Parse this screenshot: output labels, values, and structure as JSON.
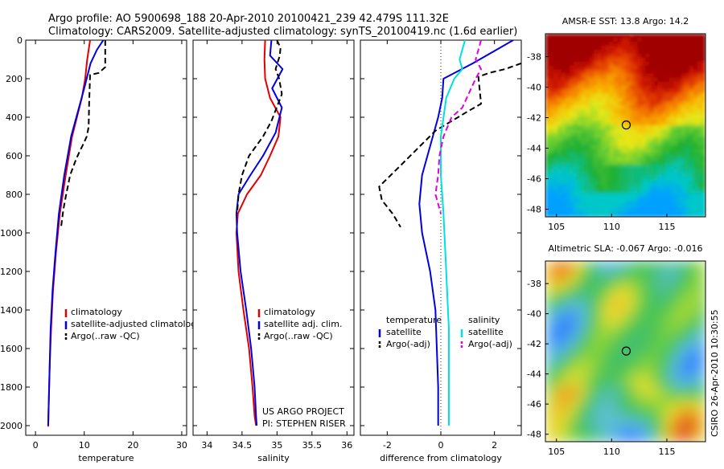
{
  "header": {
    "line1": "Argo profile: AO 5900698_188 20-Apr-2010 20100421_239 42.479S 111.32E",
    "line2": "Climatology: CARS2009. Satellite-adjusted climatology: synTS_20100419.nc (1.6d earlier)"
  },
  "credit": {
    "project": "US ARGO PROJECT",
    "pi": "PI: STEPHEN RISER",
    "stamp": "CSIRO 26-Apr-2010 10:30:55"
  },
  "colors": {
    "climatology": "#e00000",
    "satellite": "#0000e0",
    "argo": "#000000",
    "salinity_satellite": "#00e0e0",
    "salinity_argo": "#e000e0"
  },
  "chart_data": [
    {
      "type": "line",
      "id": "temperature",
      "xlabel": "temperature",
      "ylabel": "",
      "xlim": [
        -2,
        31
      ],
      "ylim": [
        2050,
        0
      ],
      "xticks": [
        0,
        10,
        20,
        30
      ],
      "yticks": [
        0,
        200,
        400,
        600,
        800,
        1000,
        1200,
        1400,
        1600,
        1800,
        2000
      ],
      "legend": [
        "climatology",
        "satellite-adjusted climatology",
        "Argo(..raw -QC)"
      ],
      "series": [
        {
          "name": "climatology",
          "color": "#e00000",
          "dash": "",
          "x": [
            11.2,
            10.6,
            10.2,
            9.5,
            7.5,
            6.2,
            5.0,
            4.2,
            3.6,
            3.2,
            2.9,
            2.7,
            2.6,
            2.6
          ],
          "y": [
            0,
            100,
            200,
            300,
            500,
            700,
            900,
            1100,
            1300,
            1500,
            1700,
            1900,
            2000,
            2005
          ]
        },
        {
          "name": "satellite-adjusted climatology",
          "color": "#0000e0",
          "dash": "",
          "x": [
            13.9,
            12.6,
            11.3,
            10.0,
            7.3,
            5.9,
            4.8,
            4.1,
            3.5,
            3.1,
            2.9,
            2.7,
            2.6
          ],
          "y": [
            0,
            50,
            120,
            250,
            500,
            700,
            900,
            1100,
            1300,
            1500,
            1700,
            1900,
            2000
          ]
        },
        {
          "name": "Argo(..raw -QC)",
          "color": "#000000",
          "dash": "7,4",
          "x": [
            14.3,
            14.3,
            13.0,
            11.2,
            11.0,
            10.9,
            10.5,
            9.8,
            9.0,
            8.3,
            7.1,
            6.3,
            5.7,
            5.2
          ],
          "y": [
            0,
            140,
            170,
            180,
            330,
            450,
            500,
            540,
            580,
            620,
            700,
            800,
            880,
            980
          ]
        }
      ]
    },
    {
      "type": "line",
      "id": "salinity",
      "xlabel": "salinity",
      "ylabel": "",
      "xlim": [
        33.8,
        36.1
      ],
      "ylim": [
        2050,
        0
      ],
      "xticks": [
        34,
        34.5,
        35,
        35.5,
        36
      ],
      "yticks": [
        0,
        200,
        400,
        600,
        800,
        1000,
        1200,
        1400,
        1600,
        1800,
        2000
      ],
      "legend": [
        "climatology",
        "satellite adj. clim.",
        "Argo(..raw -QC)"
      ],
      "series": [
        {
          "name": "climatology",
          "color": "#e00000",
          "dash": "",
          "x": [
            34.83,
            34.82,
            34.83,
            34.9,
            35.05,
            35.02,
            34.9,
            34.77,
            34.57,
            34.44,
            34.42,
            34.45,
            34.52,
            34.6,
            34.65,
            34.68,
            34.7
          ],
          "y": [
            0,
            100,
            200,
            300,
            400,
            500,
            600,
            700,
            800,
            900,
            1000,
            1200,
            1400,
            1600,
            1800,
            1950,
            2000
          ]
        },
        {
          "name": "satellite adj. clim.",
          "color": "#0000e0",
          "dash": "",
          "x": [
            34.92,
            34.9,
            35.08,
            34.93,
            35.07,
            34.98,
            34.8,
            34.62,
            34.45,
            34.42,
            34.43,
            34.48,
            34.56,
            34.63,
            34.68,
            34.7,
            34.71
          ],
          "y": [
            0,
            80,
            150,
            250,
            350,
            480,
            600,
            700,
            800,
            900,
            1000,
            1200,
            1400,
            1600,
            1800,
            1950,
            2000
          ]
        },
        {
          "name": "Argo(..raw -QC)",
          "color": "#000000",
          "dash": "7,4",
          "x": [
            35.0,
            35.05,
            35.04,
            34.98,
            35.03,
            35.07,
            34.92,
            34.8,
            34.6,
            34.5,
            34.45,
            34.43
          ],
          "y": [
            0,
            40,
            80,
            150,
            200,
            280,
            420,
            500,
            600,
            700,
            800,
            900
          ]
        }
      ]
    },
    {
      "type": "line",
      "id": "difference",
      "xlabel": "difference from climatology",
      "ylabel": "",
      "xlim": [
        -3,
        3
      ],
      "ylim": [
        2050,
        0
      ],
      "xticks": [
        -2,
        0,
        2
      ],
      "yticks": [
        0,
        200,
        400,
        600,
        800,
        1000,
        1200,
        1400,
        1600,
        1800,
        2000
      ],
      "zero_line": 0,
      "legend": [
        "temperature",
        "satellite",
        "Argo(-adj)",
        "salinity",
        "satellite",
        "Argo(-adj)"
      ],
      "series": [
        {
          "name": "temperature satellite",
          "color": "#0000e0",
          "dash": "",
          "x": [
            2.7,
            2.2,
            1.2,
            0.1,
            0.05,
            -0.1,
            -0.4,
            -0.7,
            -0.8,
            -0.7,
            -0.4,
            -0.2,
            -0.15,
            -0.1,
            -0.1
          ],
          "y": [
            0,
            40,
            120,
            200,
            300,
            400,
            550,
            700,
            850,
            1000,
            1200,
            1400,
            1600,
            1800,
            2000
          ]
        },
        {
          "name": "temperature Argo(-adj)",
          "color": "#000000",
          "dash": "7,4",
          "x": [
            3.0,
            2.4,
            1.8,
            1.4,
            1.5,
            1.0,
            -0.2,
            -1.5,
            -2.3,
            -2.2,
            -1.8,
            -1.5
          ],
          "y": [
            120,
            150,
            170,
            190,
            330,
            370,
            470,
            650,
            760,
            830,
            900,
            970
          ]
        },
        {
          "name": "salinity satellite",
          "color": "#00e0e0",
          "dash": "",
          "x": [
            0.9,
            0.7,
            0.8,
            0.5,
            0.2,
            0.0,
            0.0,
            0.1,
            0.2,
            0.3,
            0.3,
            0.3
          ],
          "y": [
            0,
            100,
            150,
            200,
            300,
            500,
            700,
            900,
            1200,
            1500,
            1800,
            2000
          ]
        },
        {
          "name": "salinity Argo(-adj)",
          "color": "#e000e0",
          "dash": "7,4",
          "x": [
            1.5,
            1.4,
            1.3,
            1.5,
            1.3,
            0.8,
            0.4,
            0.1,
            -0.05,
            -0.1,
            -0.2,
            -0.1,
            0.0
          ],
          "y": [
            0,
            50,
            100,
            150,
            200,
            350,
            400,
            500,
            600,
            700,
            800,
            850,
            900
          ]
        }
      ]
    },
    {
      "type": "heatmap",
      "id": "sst-map",
      "title": "AMSR-E SST: 13.8 Argo: 14.2",
      "xlim": [
        104,
        118.5
      ],
      "ylim": [
        -48.5,
        -36.5
      ],
      "xticks": [
        105,
        110,
        115
      ],
      "yticks": [
        -38,
        -40,
        -42,
        -44,
        -46,
        -48
      ],
      "marker": {
        "lon": 111.32,
        "lat": -42.48
      }
    },
    {
      "type": "heatmap",
      "id": "sla-map",
      "title": "Altimetric SLA: -0.067 Argo: -0.016",
      "xlim": [
        104,
        118.5
      ],
      "ylim": [
        -48.5,
        -36.5
      ],
      "xticks": [
        105,
        110,
        115
      ],
      "yticks": [
        -38,
        -40,
        -42,
        -44,
        -46,
        -48
      ],
      "marker": {
        "lon": 111.32,
        "lat": -42.48
      }
    }
  ]
}
